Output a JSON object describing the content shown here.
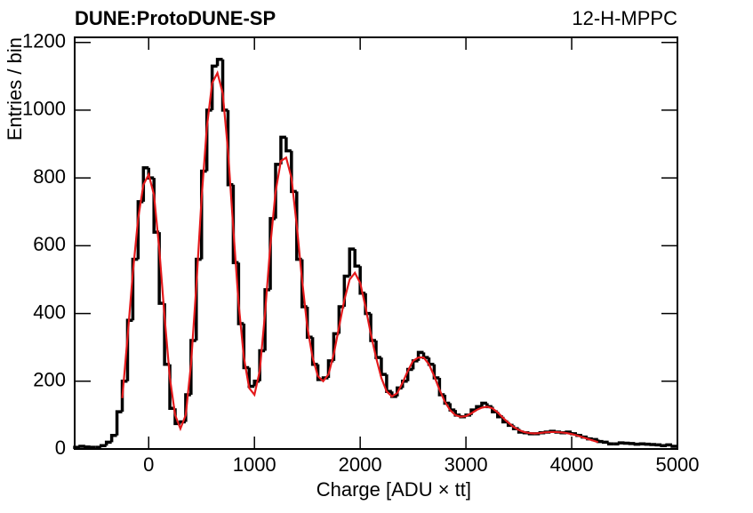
{
  "chart_data": {
    "type": "histogram",
    "title": "DUNE:ProtoDUNE-SP",
    "subtitle": "12-H-MPPC",
    "x_label": "Charge [ADU × tt]",
    "y_label": "Entries / bin",
    "xlim": [
      -700,
      5000
    ],
    "ylim": [
      0,
      1215
    ],
    "xticks": [
      0,
      1000,
      2000,
      3000,
      4000,
      5000
    ],
    "yticks": [
      0,
      200,
      400,
      600,
      800,
      1000,
      1200
    ],
    "color": "#000000",
    "bins": [
      -700,
      -650,
      -600,
      -550,
      -500,
      -450,
      -400,
      -350,
      -300,
      -250,
      -200,
      -150,
      -100,
      -50,
      0,
      50,
      100,
      150,
      200,
      250,
      300,
      350,
      400,
      450,
      500,
      550,
      600,
      650,
      700,
      750,
      800,
      850,
      900,
      950,
      1000,
      1050,
      1100,
      1150,
      1200,
      1250,
      1300,
      1350,
      1400,
      1450,
      1500,
      1550,
      1600,
      1650,
      1700,
      1750,
      1800,
      1850,
      1900,
      1950,
      2000,
      2050,
      2100,
      2150,
      2200,
      2250,
      2300,
      2350,
      2400,
      2450,
      2500,
      2550,
      2600,
      2650,
      2700,
      2750,
      2800,
      2850,
      2900,
      2950,
      3000,
      3050,
      3100,
      3150,
      3200,
      3250,
      3300,
      3350,
      3400,
      3450,
      3500,
      3550,
      3600,
      3650,
      3700,
      3750,
      3800,
      3850,
      3900,
      3950,
      4000,
      4050,
      4100,
      4150,
      4200,
      4250,
      4300,
      4350,
      4400,
      4450,
      4500,
      4550,
      4600,
      4650,
      4700,
      4750,
      4800,
      4850,
      4900,
      4950,
      5000
    ],
    "values": [
      5,
      8,
      6,
      5,
      5,
      10,
      20,
      40,
      110,
      200,
      380,
      560,
      730,
      830,
      800,
      640,
      430,
      250,
      120,
      75,
      80,
      160,
      320,
      560,
      820,
      1000,
      1130,
      1150,
      1000,
      780,
      550,
      370,
      240,
      185,
      200,
      290,
      470,
      680,
      840,
      920,
      880,
      760,
      560,
      420,
      330,
      250,
      205,
      210,
      260,
      340,
      420,
      510,
      590,
      540,
      460,
      400,
      320,
      270,
      220,
      170,
      155,
      180,
      200,
      235,
      260,
      285,
      270,
      250,
      210,
      160,
      135,
      115,
      100,
      95,
      100,
      115,
      125,
      135,
      125,
      110,
      95,
      80,
      70,
      60,
      50,
      48,
      45,
      45,
      48,
      50,
      52,
      50,
      48,
      50,
      45,
      40,
      35,
      30,
      28,
      22,
      20,
      15,
      15,
      18,
      17,
      16,
      14,
      15,
      14,
      13,
      12,
      10,
      12,
      8
    ],
    "fit": {
      "color": "#e41a1c",
      "x": [
        -250,
        -200,
        -150,
        -100,
        -50,
        0,
        50,
        100,
        150,
        200,
        250,
        300,
        350,
        400,
        450,
        500,
        550,
        600,
        650,
        700,
        750,
        800,
        850,
        900,
        950,
        1000,
        1050,
        1100,
        1150,
        1200,
        1250,
        1300,
        1350,
        1400,
        1450,
        1500,
        1550,
        1600,
        1650,
        1700,
        1750,
        1800,
        1850,
        1900,
        1950,
        2000,
        2050,
        2100,
        2150,
        2200,
        2250,
        2300,
        2350,
        2400,
        2450,
        2500,
        2550,
        2600,
        2650,
        2700,
        2750,
        2800,
        2850,
        2900,
        2950,
        3000,
        3050,
        3100,
        3150,
        3200,
        3250,
        3300,
        3350,
        3400,
        3450,
        3500,
        3550,
        3600,
        3650,
        3700,
        3750,
        3800,
        3850,
        3900,
        3950,
        4000,
        4050,
        4100,
        4150,
        4200,
        4250
      ],
      "values": [
        150,
        330,
        520,
        680,
        780,
        810,
        750,
        590,
        390,
        210,
        100,
        60,
        100,
        250,
        480,
        740,
        950,
        1080,
        1110,
        1050,
        880,
        650,
        430,
        270,
        180,
        160,
        230,
        400,
        600,
        760,
        850,
        860,
        800,
        660,
        500,
        360,
        270,
        215,
        200,
        220,
        280,
        360,
        440,
        500,
        520,
        490,
        420,
        340,
        270,
        210,
        170,
        155,
        165,
        195,
        230,
        260,
        270,
        270,
        250,
        215,
        175,
        140,
        115,
        100,
        95,
        97,
        105,
        115,
        122,
        125,
        120,
        108,
        92,
        78,
        65,
        56,
        50,
        47,
        46,
        47,
        49,
        50,
        50,
        49,
        47,
        44,
        40,
        35,
        30,
        25,
        20
      ]
    }
  }
}
